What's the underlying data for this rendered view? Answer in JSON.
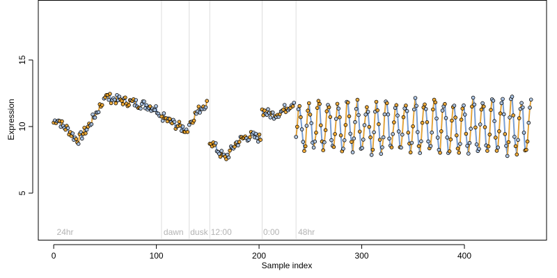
{
  "chart_data": {
    "type": "scatter",
    "title": "",
    "xlabel": "Sample index",
    "ylabel": "Expression",
    "xlim": [
      -15,
      480
    ],
    "ylim": [
      1.5,
      19.5
    ],
    "x_ticks": [
      0,
      100,
      200,
      300,
      400
    ],
    "y_ticks": [
      5,
      10,
      15
    ],
    "grid": false,
    "legend": "none",
    "colors": {
      "point_fill_light": "#a9c4e8",
      "point_fill_orange": "#f5a623",
      "point_stroke": "#000000",
      "line_gray": "#9e9e9e",
      "segment_blue": "#6f9ee0",
      "segment_orange": "#f5a623",
      "divider": "#dddddd",
      "region_text": "#b3b3b3"
    },
    "region_dividers": [
      105,
      132,
      152,
      203,
      236
    ],
    "region_labels": [
      {
        "text": "24hr",
        "x": 3
      },
      {
        "text": "dawn",
        "x": 107
      },
      {
        "text": "dusk",
        "x": 133
      },
      {
        "text": "12:00",
        "x": 153
      },
      {
        "text": "0:00",
        "x": 204
      },
      {
        "text": "48hr",
        "x": 238
      }
    ],
    "segments": [
      {
        "x_start": 0,
        "x_end": 48,
        "points": [
          [
            0,
            10.3
          ],
          [
            3,
            10.6
          ],
          [
            6,
            10.4
          ],
          [
            9,
            10.0
          ],
          [
            12,
            9.9
          ],
          [
            15,
            9.7
          ],
          [
            18,
            9.4
          ],
          [
            21,
            9.1
          ],
          [
            24,
            9.0
          ],
          [
            27,
            9.3
          ],
          [
            30,
            9.6
          ],
          [
            33,
            9.9
          ],
          [
            36,
            10.3
          ],
          [
            39,
            10.7
          ],
          [
            42,
            11.1
          ],
          [
            45,
            11.5
          ],
          [
            48,
            11.8
          ]
        ]
      },
      {
        "x_start": 49,
        "x_end": 104,
        "points": [
          [
            49,
            12.3
          ],
          [
            56,
            12.1
          ],
          [
            63,
            12.0
          ],
          [
            70,
            11.9
          ],
          [
            77,
            11.8
          ],
          [
            84,
            11.7
          ],
          [
            91,
            11.6
          ],
          [
            98,
            11.4
          ],
          [
            104,
            11.1
          ]
        ]
      },
      {
        "x_start": 105,
        "x_end": 131,
        "points": [
          [
            105,
            10.8
          ],
          [
            110,
            10.5
          ],
          [
            115,
            10.3
          ],
          [
            120,
            10.1
          ],
          [
            125,
            9.9
          ],
          [
            131,
            9.7
          ]
        ]
      },
      {
        "x_start": 132,
        "x_end": 150,
        "points": [
          [
            132,
            10.2
          ],
          [
            137,
            10.8
          ],
          [
            142,
            11.3
          ],
          [
            146,
            11.6
          ],
          [
            150,
            11.8
          ]
        ]
      },
      {
        "x_start": 152,
        "x_end": 202,
        "points": [
          [
            152,
            9.0
          ],
          [
            157,
            8.5
          ],
          [
            162,
            8.0
          ],
          [
            167,
            7.6
          ],
          [
            172,
            8.1
          ],
          [
            177,
            8.7
          ],
          [
            182,
            9.0
          ],
          [
            187,
            9.2
          ],
          [
            192,
            9.3
          ],
          [
            197,
            9.2
          ],
          [
            202,
            9.1
          ]
        ]
      },
      {
        "x_start": 203,
        "x_end": 235,
        "points": [
          [
            203,
            11.2
          ],
          [
            208,
            11.0
          ],
          [
            213,
            10.9
          ],
          [
            218,
            11.0
          ],
          [
            223,
            11.2
          ],
          [
            228,
            11.5
          ],
          [
            233,
            11.8
          ],
          [
            235,
            12.0
          ]
        ]
      },
      {
        "x_start": 236,
        "x_end": 465,
        "cycle": {
          "period": 9.4,
          "mean": 10.0,
          "amplitude": 1.7,
          "amplitude_end": 2.0
        }
      }
    ]
  }
}
